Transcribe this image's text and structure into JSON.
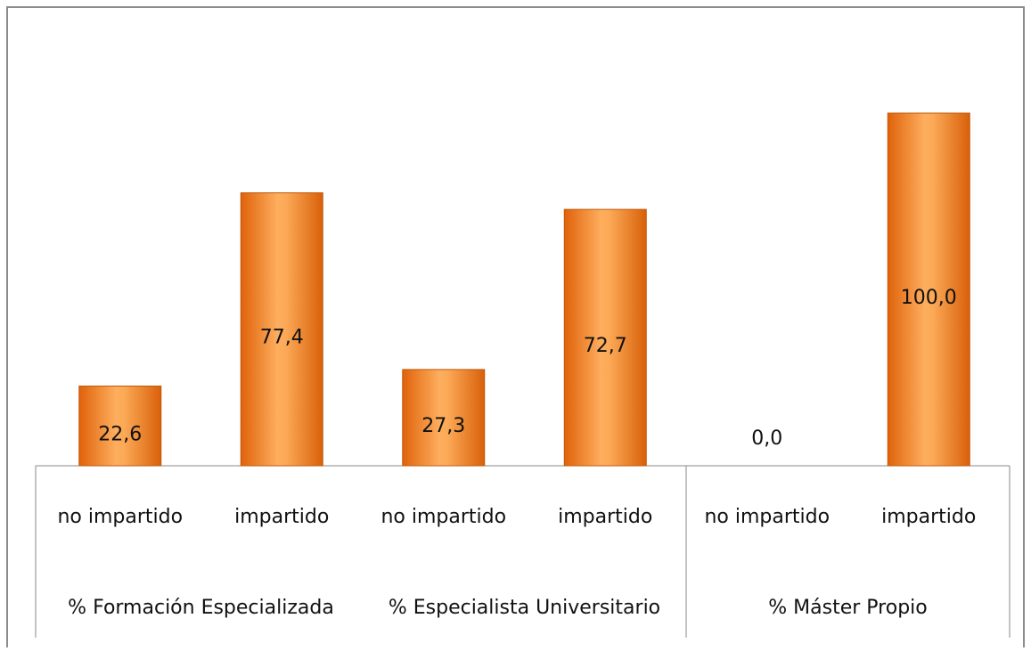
{
  "chart_data": {
    "type": "bar",
    "categories": [
      "no impartido",
      "impartido",
      "no impartido",
      "impartido",
      "no impartido",
      "impartido"
    ],
    "groups": [
      "% Formación Especializada",
      "% Especialista Universitario",
      "% Máster Propio"
    ],
    "values": [
      22.6,
      77.4,
      27.3,
      72.7,
      0,
      100
    ],
    "value_labels": [
      "22,6",
      "77,4",
      "27,3",
      "72,7",
      "0,0",
      "100,0"
    ],
    "color": "#f79646",
    "ylim": [
      0,
      100
    ]
  }
}
